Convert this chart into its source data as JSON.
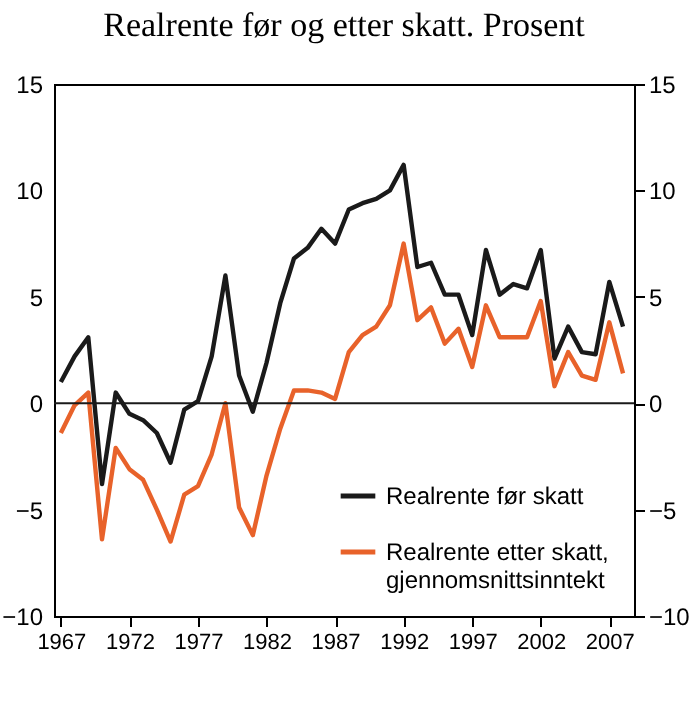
{
  "chart_data": {
    "type": "line",
    "title": "Realrente før og etter skatt. Prosent",
    "x": [
      1967,
      1968,
      1969,
      1970,
      1971,
      1972,
      1973,
      1974,
      1975,
      1976,
      1977,
      1978,
      1979,
      1980,
      1981,
      1982,
      1983,
      1984,
      1985,
      1986,
      1987,
      1988,
      1989,
      1990,
      1991,
      1992,
      1993,
      1994,
      1995,
      1996,
      1997,
      1998,
      1999,
      2000,
      2001,
      2002,
      2003,
      2004,
      2005,
      2006,
      2007,
      2008
    ],
    "series": [
      {
        "name": "Realrente før skatt",
        "color": "#1a1a1a",
        "values": [
          1.0,
          2.2,
          3.1,
          -3.8,
          0.5,
          -0.5,
          -0.8,
          -1.4,
          -2.8,
          -0.3,
          0.1,
          2.2,
          6.0,
          1.3,
          -0.4,
          1.9,
          4.7,
          6.8,
          7.3,
          8.2,
          7.5,
          9.1,
          9.4,
          9.6,
          10.0,
          11.2,
          6.4,
          6.6,
          5.1,
          5.1,
          3.2,
          7.2,
          5.1,
          5.6,
          5.4,
          7.2,
          2.1,
          3.6,
          2.4,
          2.3,
          5.7,
          3.6
        ]
      },
      {
        "name": "Realrente etter skatt, gjennomsnittsinntekt",
        "color": "#e8622a",
        "values": [
          -1.4,
          -0.1,
          0.5,
          -6.4,
          -2.1,
          -3.1,
          -3.6,
          -5.0,
          -6.5,
          -4.3,
          -3.9,
          -2.4,
          0.0,
          -4.9,
          -6.2,
          -3.4,
          -1.2,
          0.6,
          0.6,
          0.5,
          0.2,
          2.4,
          3.2,
          3.6,
          4.6,
          7.5,
          3.9,
          4.5,
          2.8,
          3.5,
          1.7,
          4.6,
          3.1,
          3.1,
          3.1,
          4.8,
          0.8,
          2.4,
          1.3,
          1.1,
          3.8,
          1.4
        ]
      }
    ],
    "xlim": [
      1966.5,
      2008.8
    ],
    "xticks": [
      1967,
      1972,
      1977,
      1982,
      1987,
      1992,
      1997,
      2002,
      2007
    ],
    "ylim": [
      -10,
      15
    ],
    "yticks": [
      -10,
      -5,
      0,
      5,
      10,
      15
    ],
    "y2lim": [
      -10,
      15
    ],
    "y2ticks": [
      -10,
      -5,
      0,
      5,
      10,
      15
    ],
    "ref_lines": [
      {
        "axis": "y",
        "value": 0,
        "color": "#1a1a1a"
      }
    ],
    "legend": "bottom right",
    "grid": false
  }
}
